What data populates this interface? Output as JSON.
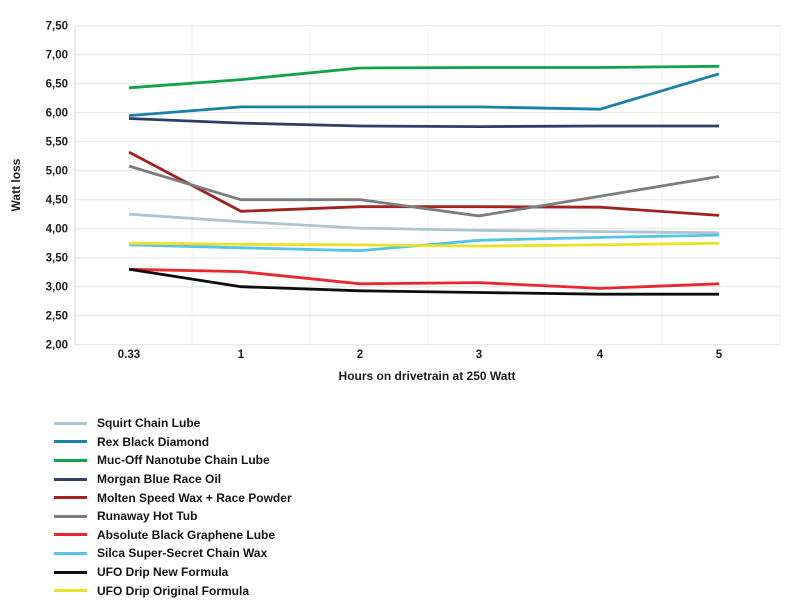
{
  "chart_data": {
    "type": "line",
    "title": "",
    "xlabel": "Hours on drivetrain at 250 Watt",
    "ylabel": "Watt loss",
    "x_categories": [
      "0.33",
      "1",
      "2",
      "3",
      "4",
      "5"
    ],
    "y_tick_labels": [
      "7,50",
      "7,00",
      "6,50",
      "6,00",
      "5,50",
      "5,00",
      "4,50",
      "4,00",
      "3,50",
      "3,00",
      "2,50",
      "2,00"
    ],
    "y_tick_values": [
      7.5,
      7.0,
      6.5,
      6.0,
      5.5,
      5.0,
      4.5,
      4.0,
      3.5,
      3.0,
      2.5,
      2.0
    ],
    "ylim": [
      2.0,
      7.5
    ],
    "grid": true,
    "legend_position": "bottom-left",
    "colors": {
      "horizontal_gridline": "#e3e3e3",
      "vertical_gridline": "#eeeeee",
      "axis_line": "#d9d9d9",
      "background": "#ffffff"
    },
    "series": [
      {
        "name": "Squirt Chain Lube",
        "color": "#aec5cf",
        "values": [
          4.25,
          4.12,
          4.01,
          3.97,
          3.95,
          3.93
        ]
      },
      {
        "name": "Rex Black Diamond",
        "color": "#1b80aa",
        "values": [
          5.95,
          6.1,
          6.1,
          6.1,
          6.06,
          6.67
        ]
      },
      {
        "name": "Muc-Off Nanotube Chain Lube",
        "color": "#10a34a",
        "values": [
          6.43,
          6.57,
          6.77,
          6.78,
          6.78,
          6.8
        ]
      },
      {
        "name": "Morgan Blue Race Oil",
        "color": "#2d3f68",
        "values": [
          5.9,
          5.82,
          5.77,
          5.76,
          5.77,
          5.77
        ]
      },
      {
        "name": "Molten Speed Wax + Race Powder",
        "color": "#9f2420",
        "values": [
          5.32,
          4.3,
          4.38,
          4.38,
          4.37,
          4.23
        ]
      },
      {
        "name": "Runaway Hot Tub",
        "color": "#7d7d7d",
        "values": [
          5.08,
          4.5,
          4.5,
          4.22,
          4.56,
          4.9
        ]
      },
      {
        "name": "Absolute Black Graphene Lube",
        "color": "#e8282d",
        "values": [
          3.3,
          3.26,
          3.05,
          3.07,
          2.97,
          3.05
        ]
      },
      {
        "name": "Silca Super-Secret Chain Wax",
        "color": "#55c3ea",
        "values": [
          3.72,
          3.67,
          3.62,
          3.8,
          3.85,
          3.89
        ]
      },
      {
        "name": "UFO Drip New Formula",
        "color": "#0d0d0d",
        "values": [
          3.3,
          3.0,
          2.93,
          2.9,
          2.87,
          2.87
        ]
      },
      {
        "name": "UFO Drip Original Formula",
        "color": "#e9e226",
        "values": [
          3.75,
          3.73,
          3.72,
          3.7,
          3.72,
          3.75
        ]
      }
    ]
  }
}
